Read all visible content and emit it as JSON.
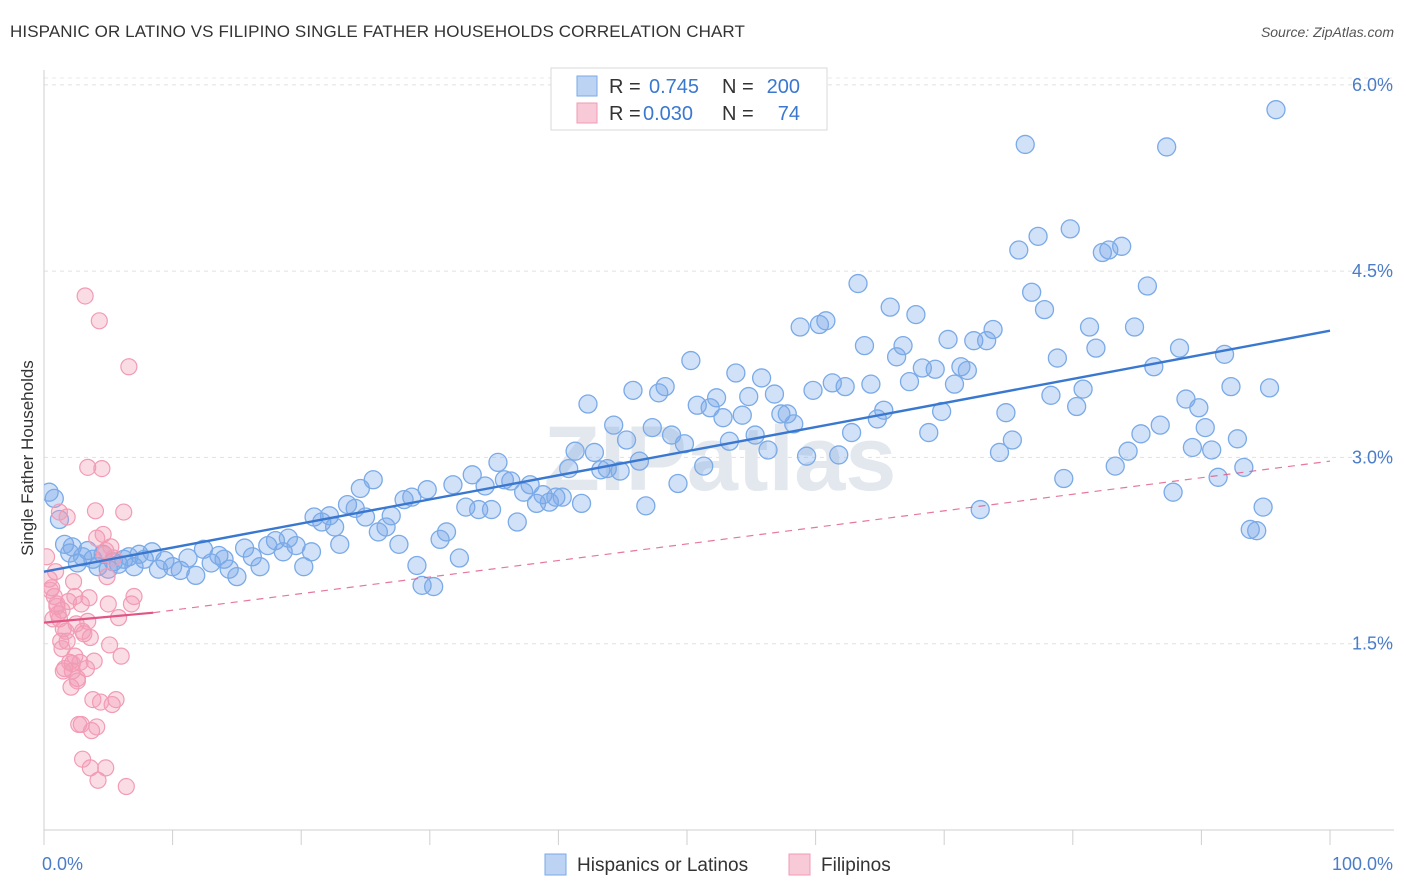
{
  "title": "HISPANIC OR LATINO VS FILIPINO SINGLE FATHER HOUSEHOLDS CORRELATION CHART",
  "source": "Source: ZipAtlas.com",
  "watermark": "ZIPatlas",
  "chart_data": {
    "type": "scatter",
    "ylabel": "Single Father Households",
    "xlabel": "",
    "xlim": [
      0,
      100
    ],
    "ylim": [
      0,
      6.2
    ],
    "x_ticks": [
      "0.0%",
      "100.0%"
    ],
    "y_ticks": [
      {
        "value": 1.5,
        "label": "1.5%"
      },
      {
        "value": 3.0,
        "label": "3.0%"
      },
      {
        "value": 4.5,
        "label": "4.5%"
      },
      {
        "value": 6.0,
        "label": "6.0%"
      }
    ],
    "grid": true,
    "legend_top": {
      "placement": "top-center",
      "entries": [
        {
          "r_label": "R =",
          "r_value": "0.745",
          "n_label": "N =",
          "n_value": "200"
        },
        {
          "r_label": "R =",
          "r_value": "0.030",
          "n_label": "N =",
          "n_value": "74"
        }
      ]
    },
    "series": [
      {
        "name": "Hispanics or Latinos",
        "color": "#7aaae8",
        "line_color": "#3a78d0",
        "trend": {
          "x0": 0,
          "y0": 2.08,
          "x1": 100,
          "y1": 4.02
        },
        "points": [
          [
            0.4,
            2.72
          ],
          [
            0.8,
            2.67
          ],
          [
            1.2,
            2.5
          ],
          [
            1.6,
            2.3
          ],
          [
            2.0,
            2.23
          ],
          [
            2.2,
            2.28
          ],
          [
            2.6,
            2.15
          ],
          [
            3.0,
            2.2
          ],
          [
            3.4,
            2.25
          ],
          [
            3.8,
            2.18
          ],
          [
            4.2,
            2.12
          ],
          [
            4.6,
            2.22
          ],
          [
            5.0,
            2.1
          ],
          [
            5.4,
            2.16
          ],
          [
            5.8,
            2.14
          ],
          [
            6.2,
            2.18
          ],
          [
            6.6,
            2.2
          ],
          [
            7.0,
            2.12
          ],
          [
            7.4,
            2.22
          ],
          [
            7.8,
            2.18
          ],
          [
            8.4,
            2.24
          ],
          [
            8.9,
            2.1
          ],
          [
            9.4,
            2.17
          ],
          [
            10.0,
            2.12
          ],
          [
            10.6,
            2.09
          ],
          [
            11.2,
            2.19
          ],
          [
            11.8,
            2.05
          ],
          [
            12.4,
            2.26
          ],
          [
            13.0,
            2.15
          ],
          [
            13.6,
            2.21
          ],
          [
            14.0,
            2.18
          ],
          [
            14.4,
            2.1
          ],
          [
            15.0,
            2.04
          ],
          [
            15.6,
            2.27
          ],
          [
            16.2,
            2.2
          ],
          [
            16.8,
            2.12
          ],
          [
            17.4,
            2.29
          ],
          [
            18.0,
            2.33
          ],
          [
            18.6,
            2.24
          ],
          [
            19.0,
            2.35
          ],
          [
            19.6,
            2.29
          ],
          [
            20.2,
            2.12
          ],
          [
            20.8,
            2.24
          ],
          [
            21.0,
            2.52
          ],
          [
            21.6,
            2.48
          ],
          [
            22.2,
            2.53
          ],
          [
            22.6,
            2.44
          ],
          [
            23.0,
            2.3
          ],
          [
            23.6,
            2.62
          ],
          [
            24.2,
            2.59
          ],
          [
            24.6,
            2.75
          ],
          [
            25.0,
            2.52
          ],
          [
            25.6,
            2.82
          ],
          [
            26.0,
            2.4
          ],
          [
            26.6,
            2.44
          ],
          [
            27.0,
            2.53
          ],
          [
            27.6,
            2.3
          ],
          [
            28.0,
            2.66
          ],
          [
            28.6,
            2.68
          ],
          [
            29.0,
            2.13
          ],
          [
            29.4,
            1.97
          ],
          [
            29.8,
            2.74
          ],
          [
            30.3,
            1.96
          ],
          [
            30.8,
            2.34
          ],
          [
            31.3,
            2.4
          ],
          [
            31.8,
            2.78
          ],
          [
            32.3,
            2.19
          ],
          [
            32.8,
            2.6
          ],
          [
            33.3,
            2.86
          ],
          [
            33.8,
            2.58
          ],
          [
            34.3,
            2.77
          ],
          [
            34.8,
            2.58
          ],
          [
            35.3,
            2.96
          ],
          [
            35.8,
            2.82
          ],
          [
            36.3,
            2.81
          ],
          [
            36.8,
            2.48
          ],
          [
            37.3,
            2.72
          ],
          [
            37.8,
            2.78
          ],
          [
            38.3,
            2.63
          ],
          [
            38.8,
            2.7
          ],
          [
            39.3,
            2.64
          ],
          [
            39.8,
            2.68
          ],
          [
            40.3,
            2.68
          ],
          [
            40.8,
            2.91
          ],
          [
            41.3,
            3.05
          ],
          [
            41.8,
            2.63
          ],
          [
            42.3,
            3.43
          ],
          [
            42.8,
            3.04
          ],
          [
            43.3,
            2.9
          ],
          [
            43.8,
            2.91
          ],
          [
            44.3,
            3.26
          ],
          [
            44.8,
            2.89
          ],
          [
            45.3,
            3.14
          ],
          [
            45.8,
            3.54
          ],
          [
            46.3,
            2.97
          ],
          [
            46.8,
            2.61
          ],
          [
            47.3,
            3.24
          ],
          [
            47.8,
            3.52
          ],
          [
            48.3,
            3.57
          ],
          [
            48.8,
            3.18
          ],
          [
            49.3,
            2.79
          ],
          [
            49.8,
            3.11
          ],
          [
            50.3,
            3.78
          ],
          [
            50.8,
            3.42
          ],
          [
            51.3,
            2.93
          ],
          [
            51.8,
            3.4
          ],
          [
            52.3,
            3.48
          ],
          [
            52.8,
            3.32
          ],
          [
            53.3,
            3.13
          ],
          [
            53.8,
            3.68
          ],
          [
            54.3,
            3.34
          ],
          [
            54.8,
            3.49
          ],
          [
            55.3,
            3.18
          ],
          [
            55.8,
            3.64
          ],
          [
            56.3,
            3.06
          ],
          [
            56.8,
            3.51
          ],
          [
            57.3,
            3.35
          ],
          [
            57.8,
            3.35
          ],
          [
            58.3,
            3.27
          ],
          [
            58.8,
            4.05
          ],
          [
            59.3,
            3.01
          ],
          [
            59.8,
            3.54
          ],
          [
            60.3,
            4.07
          ],
          [
            60.8,
            4.1
          ],
          [
            61.3,
            3.6
          ],
          [
            61.8,
            3.02
          ],
          [
            62.3,
            3.57
          ],
          [
            62.8,
            3.2
          ],
          [
            63.3,
            4.4
          ],
          [
            63.8,
            3.9
          ],
          [
            64.3,
            3.59
          ],
          [
            64.8,
            3.31
          ],
          [
            65.3,
            3.38
          ],
          [
            65.8,
            4.21
          ],
          [
            66.3,
            3.81
          ],
          [
            66.8,
            3.9
          ],
          [
            67.3,
            3.61
          ],
          [
            67.8,
            4.15
          ],
          [
            68.3,
            3.72
          ],
          [
            68.8,
            3.2
          ],
          [
            69.3,
            3.71
          ],
          [
            69.8,
            3.37
          ],
          [
            70.3,
            3.95
          ],
          [
            70.8,
            3.59
          ],
          [
            71.3,
            3.73
          ],
          [
            71.8,
            3.7
          ],
          [
            72.3,
            3.94
          ],
          [
            72.8,
            2.58
          ],
          [
            73.3,
            3.94
          ],
          [
            73.8,
            4.03
          ],
          [
            74.3,
            3.04
          ],
          [
            74.8,
            3.36
          ],
          [
            75.3,
            3.14
          ],
          [
            75.8,
            4.67
          ],
          [
            76.3,
            5.52
          ],
          [
            76.8,
            4.33
          ],
          [
            77.3,
            4.78
          ],
          [
            77.8,
            4.19
          ],
          [
            78.3,
            3.5
          ],
          [
            78.8,
            3.8
          ],
          [
            79.3,
            2.83
          ],
          [
            79.8,
            4.84
          ],
          [
            80.3,
            3.41
          ],
          [
            80.8,
            3.55
          ],
          [
            81.3,
            4.05
          ],
          [
            81.8,
            3.88
          ],
          [
            82.3,
            4.65
          ],
          [
            82.8,
            4.67
          ],
          [
            83.3,
            2.93
          ],
          [
            83.8,
            4.7
          ],
          [
            84.3,
            3.05
          ],
          [
            84.8,
            4.05
          ],
          [
            85.3,
            3.19
          ],
          [
            85.8,
            4.38
          ],
          [
            86.3,
            3.73
          ],
          [
            86.8,
            3.26
          ],
          [
            87.3,
            5.5
          ],
          [
            87.8,
            2.72
          ],
          [
            88.3,
            3.88
          ],
          [
            88.8,
            3.47
          ],
          [
            89.3,
            3.08
          ],
          [
            89.8,
            3.4
          ],
          [
            90.3,
            3.24
          ],
          [
            90.8,
            3.06
          ],
          [
            91.3,
            2.84
          ],
          [
            91.8,
            3.83
          ],
          [
            92.3,
            3.57
          ],
          [
            92.8,
            3.15
          ],
          [
            93.3,
            2.92
          ],
          [
            93.8,
            2.42
          ],
          [
            94.3,
            2.41
          ],
          [
            94.8,
            2.6
          ],
          [
            95.3,
            3.56
          ],
          [
            95.8,
            5.8
          ]
        ]
      },
      {
        "name": "Filipinos",
        "color": "#f29bb5",
        "line_color": "#e05585",
        "trend": {
          "x0": 0,
          "y0": 1.67,
          "x1": 8.5,
          "y1": 1.75
        },
        "trend_ext": {
          "x0": 8.5,
          "y0": 1.75,
          "x1": 100,
          "y1": 2.97
        },
        "points": [
          [
            0.2,
            2.2
          ],
          [
            0.4,
            2.02
          ],
          [
            0.6,
            1.95
          ],
          [
            0.8,
            1.88
          ],
          [
            0.9,
            2.08
          ],
          [
            1.0,
            1.8
          ],
          [
            1.1,
            1.74
          ],
          [
            1.2,
            1.7
          ],
          [
            1.3,
            1.52
          ],
          [
            1.4,
            1.46
          ],
          [
            1.5,
            1.62
          ],
          [
            1.6,
            1.3
          ],
          [
            1.7,
            1.6
          ],
          [
            1.8,
            2.52
          ],
          [
            1.9,
            1.84
          ],
          [
            2.0,
            1.35
          ],
          [
            2.1,
            1.15
          ],
          [
            2.2,
            1.28
          ],
          [
            2.3,
            2.0
          ],
          [
            2.4,
            1.4
          ],
          [
            2.5,
            1.66
          ],
          [
            2.6,
            1.22
          ],
          [
            2.7,
            0.85
          ],
          [
            2.8,
            1.35
          ],
          [
            2.9,
            1.82
          ],
          [
            3.0,
            0.57
          ],
          [
            3.1,
            1.58
          ],
          [
            3.2,
            4.3
          ],
          [
            3.3,
            1.3
          ],
          [
            3.4,
            2.92
          ],
          [
            3.5,
            1.87
          ],
          [
            3.6,
            0.5
          ],
          [
            3.7,
            0.8
          ],
          [
            3.8,
            1.05
          ],
          [
            3.9,
            1.36
          ],
          [
            4.0,
            2.57
          ],
          [
            4.1,
            0.83
          ],
          [
            4.2,
            0.4
          ],
          [
            4.3,
            4.1
          ],
          [
            4.4,
            1.03
          ],
          [
            4.5,
            2.91
          ],
          [
            4.6,
            2.38
          ],
          [
            4.7,
            2.22
          ],
          [
            4.8,
            0.5
          ],
          [
            4.9,
            2.04
          ],
          [
            5.0,
            1.82
          ],
          [
            5.1,
            1.49
          ],
          [
            5.2,
            2.28
          ],
          [
            5.3,
            1.01
          ],
          [
            5.4,
            2.19
          ],
          [
            5.6,
            1.05
          ],
          [
            5.8,
            1.71
          ],
          [
            6.0,
            1.4
          ],
          [
            6.2,
            2.56
          ],
          [
            6.4,
            0.35
          ],
          [
            6.6,
            3.73
          ],
          [
            6.8,
            1.82
          ],
          [
            7.0,
            1.88
          ],
          [
            1.0,
            1.82
          ],
          [
            1.4,
            1.77
          ],
          [
            1.8,
            1.52
          ],
          [
            2.2,
            1.34
          ],
          [
            2.6,
            1.2
          ],
          [
            3.0,
            1.6
          ],
          [
            3.4,
            1.68
          ],
          [
            0.5,
            1.93
          ],
          [
            1.2,
            2.56
          ],
          [
            2.4,
            1.88
          ],
          [
            3.6,
            1.55
          ],
          [
            4.8,
            2.25
          ],
          [
            0.7,
            1.7
          ],
          [
            1.5,
            1.28
          ],
          [
            2.9,
            0.85
          ],
          [
            4.1,
            2.35
          ]
        ]
      }
    ]
  }
}
